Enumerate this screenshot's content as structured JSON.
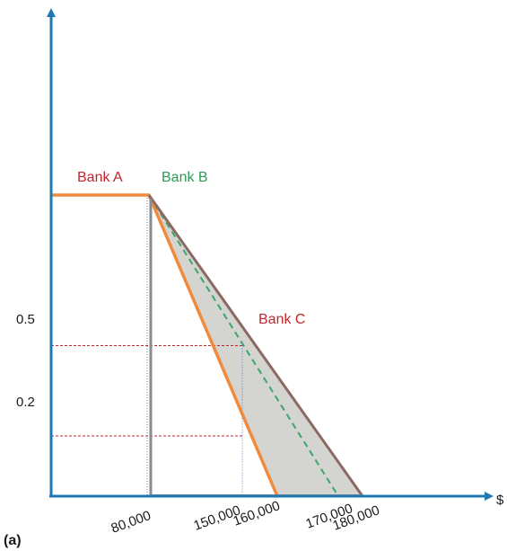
{
  "colors": {
    "axis": "#1f77b4",
    "bank_a": "#f08a3c",
    "bank_b": "#3aa66a",
    "bank_c": "#8a6a62",
    "label_red": "#c0262d",
    "label_green": "#2e9a56",
    "guide_red": "#c0262d",
    "guide_blue": "#5a78b8",
    "shade": "#d4d4d0"
  },
  "chart_data": {
    "type": "line",
    "panel_label": "(a)",
    "xlabel": "$",
    "ylabel": "",
    "x_ticks": [
      "80,000",
      "150,000",
      "160,000",
      "170,000",
      "180,000"
    ],
    "y_ticks": [
      "0.5",
      "0.2"
    ],
    "series": [
      {
        "name": "Bank A",
        "style": "solid",
        "points": [
          [
            0,
            1.0
          ],
          [
            80000,
            1.0
          ],
          [
            160000,
            0.0
          ]
        ]
      },
      {
        "name": "Bank B",
        "style": "dashed",
        "points": [
          [
            80000,
            1.0
          ],
          [
            170000,
            0.0
          ]
        ]
      },
      {
        "name": "Bank C",
        "style": "solid",
        "points": [
          [
            80000,
            1.0
          ],
          [
            180000,
            0.0
          ]
        ]
      }
    ],
    "shaded_region": "between Bank A and Bank C",
    "guides": [
      {
        "y": 0.5,
        "x_end": 150000
      },
      {
        "y": 0.2,
        "x_end": 150000
      }
    ]
  }
}
